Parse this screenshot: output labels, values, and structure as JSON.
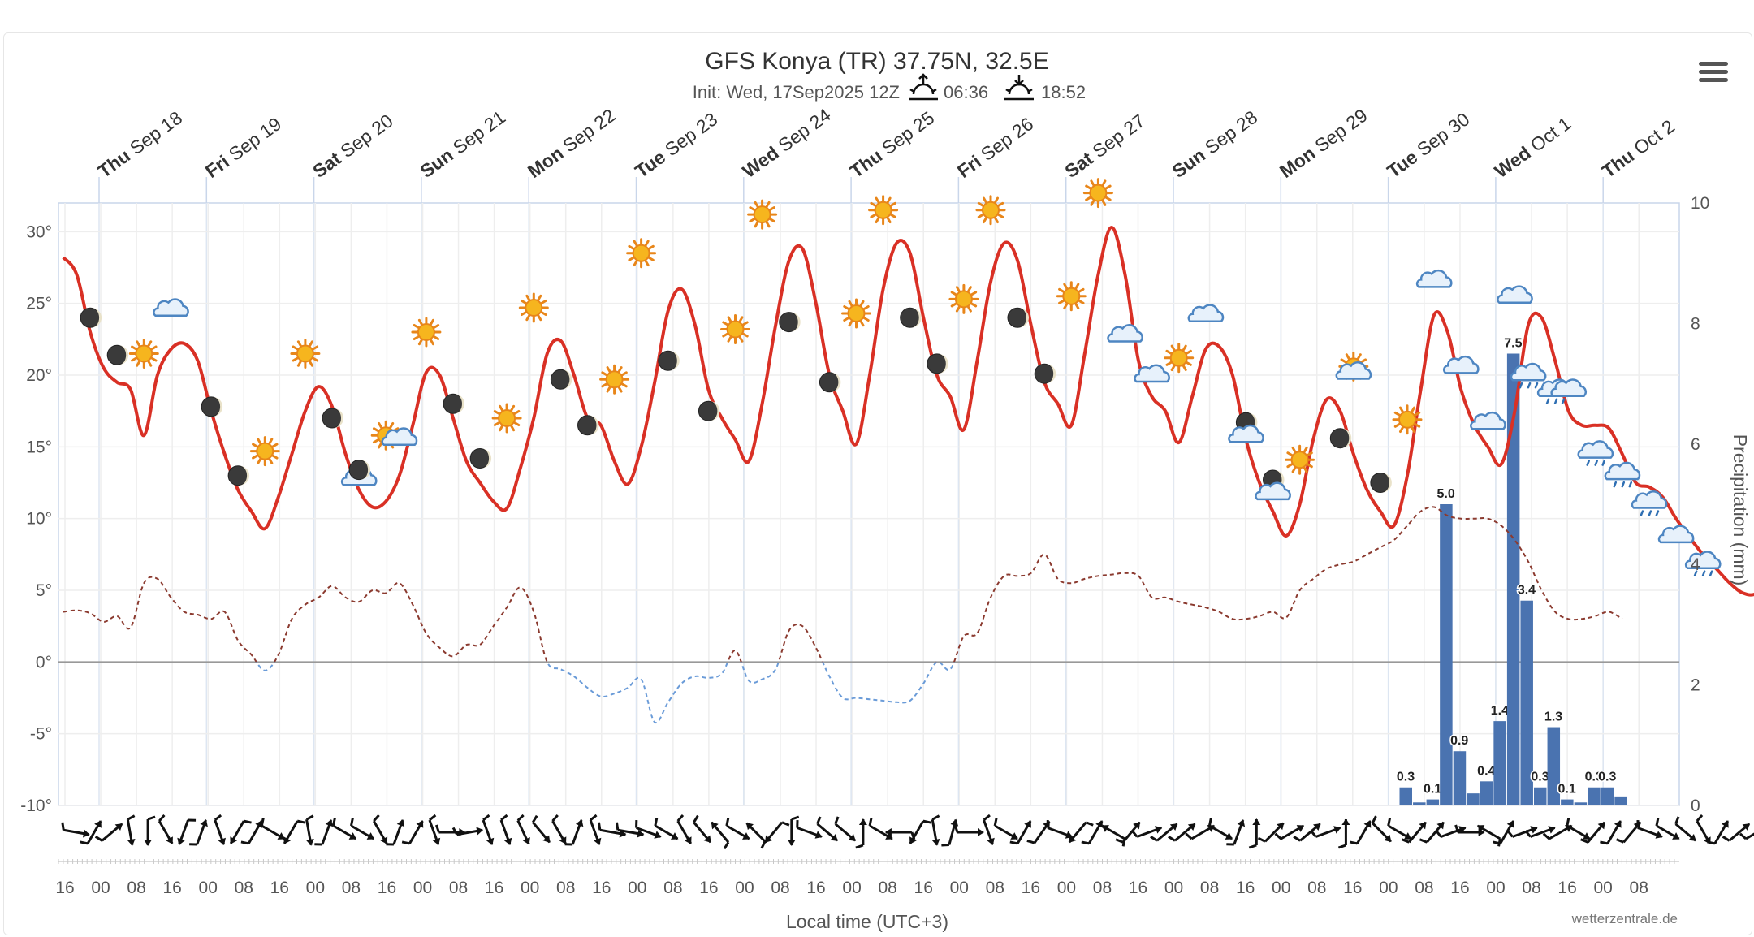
{
  "chart_data": {
    "type": "line",
    "title": "GFS Konya (TR) 37.75N, 32.5E",
    "subtitle": {
      "init": "Init: Wed, 17Sep2025 12Z",
      "sunrise": "06:36",
      "sunset": "18:52"
    },
    "days": [
      {
        "wd": "Thu",
        "date": "Sep 18"
      },
      {
        "wd": "Fri",
        "date": "Sep 19"
      },
      {
        "wd": "Sat",
        "date": "Sep 20"
      },
      {
        "wd": "Sun",
        "date": "Sep 21"
      },
      {
        "wd": "Mon",
        "date": "Sep 22"
      },
      {
        "wd": "Tue",
        "date": "Sep 23"
      },
      {
        "wd": "Wed",
        "date": "Sep 24"
      },
      {
        "wd": "Thu",
        "date": "Sep 25"
      },
      {
        "wd": "Fri",
        "date": "Sep 26"
      },
      {
        "wd": "Sat",
        "date": "Sep 27"
      },
      {
        "wd": "Sun",
        "date": "Sep 28"
      },
      {
        "wd": "Mon",
        "date": "Sep 29"
      },
      {
        "wd": "Tue",
        "date": "Sep 30"
      },
      {
        "wd": "Wed",
        "date": "Oct 1"
      },
      {
        "wd": "Thu",
        "date": "Oct 2"
      }
    ],
    "xlabel": "Local time (UTC+3)",
    "x_start": "Sep 17 15:00",
    "x_step_hours": 3,
    "x_ticks": [
      "16",
      "00",
      "08",
      "16",
      "00",
      "08",
      "16",
      "00",
      "08",
      "16",
      "00",
      "08",
      "16",
      "00",
      "08",
      "16",
      "00",
      "08",
      "16",
      "00",
      "08",
      "16",
      "00",
      "08",
      "16",
      "00",
      "08",
      "16",
      "00",
      "08",
      "16",
      "00",
      "08",
      "16",
      "00",
      "08",
      "16",
      "00",
      "08",
      "16",
      "00",
      "08",
      "16",
      "00",
      "08"
    ],
    "y_ticks": [
      "30°",
      "25°",
      "20°",
      "15°",
      "10°",
      "5°",
      "0°",
      "-5°",
      "-10°"
    ],
    "ylim": [
      -10,
      32
    ],
    "y2_ticks": [
      "10",
      "8",
      "6",
      "4",
      "2",
      "0"
    ],
    "y2label": "Precipitation (mm)",
    "y2lim": [
      0,
      10
    ],
    "series": [
      {
        "color": "#d93025",
        "values": [
          28.2,
          27.0,
          23.0,
          20.5,
          19.5,
          19.0,
          15.8,
          20.0,
          21.8,
          22.2,
          21.0,
          17.5,
          14.5,
          12.0,
          10.5,
          9.3,
          11.5,
          14.5,
          17.5,
          19.2,
          17.8,
          14.5,
          12.0,
          10.8,
          11.2,
          13.0,
          16.5,
          20.2,
          20.0,
          17.0,
          14.0,
          12.5,
          11.2,
          10.7,
          13.5,
          17.0,
          21.5,
          22.4,
          20.0,
          17.0,
          16.5,
          14.0,
          12.4,
          15.0,
          19.5,
          24.5,
          26.0,
          23.5,
          19.0,
          17.0,
          15.5,
          14.0,
          18.0,
          23.5,
          28.0,
          28.8,
          25.0,
          20.0,
          17.5,
          15.2,
          20.0,
          26.0,
          29.2,
          28.5,
          24.0,
          20.0,
          18.5,
          16.2,
          21.0,
          26.5,
          29.2,
          28.0,
          23.5,
          19.5,
          18.0,
          16.5,
          21.5,
          27.0,
          30.3,
          27.0,
          21.0,
          18.5,
          17.5,
          15.3,
          18.5,
          21.8,
          22.0,
          20.0,
          15.5,
          12.5,
          10.5,
          8.8,
          11.0,
          15.5,
          18.3,
          17.5,
          14.5,
          12.0,
          10.5,
          9.5,
          13.0,
          19.0,
          24.2,
          23.0,
          19.0,
          16.5,
          15.0,
          13.8,
          17.5,
          23.5,
          24.0,
          21.0,
          17.5,
          16.5,
          16.5,
          16.3,
          14.5,
          12.5,
          12.2,
          11.5,
          10.0,
          8.7,
          7.5,
          6.5,
          5.5,
          4.8,
          4.8,
          6.0
        ]
      },
      {
        "color": "#8b3a2f",
        "dashed": true,
        "values": [
          3.5,
          3.6,
          3.4,
          2.8,
          3.2,
          2.4,
          5.5,
          5.8,
          4.5,
          3.5,
          3.3,
          3.0,
          3.5,
          1.5,
          0.5,
          -0.6,
          0.5,
          3.0,
          4.0,
          4.5,
          5.3,
          4.5,
          4.2,
          5.0,
          4.8,
          5.5,
          4.0,
          2.0,
          1.0,
          0.4,
          1.2,
          1.2,
          2.5,
          3.8,
          5.2,
          3.5,
          0.0,
          -0.5,
          -1.0,
          -1.8,
          -2.4,
          -2.2,
          -1.8,
          -1.2,
          -4.2,
          -2.8,
          -1.5,
          -1.0,
          -1.1,
          -0.8,
          0.8,
          -1.3,
          -1.2,
          -0.5,
          2.2,
          2.5,
          1.0,
          -1.0,
          -2.5,
          -2.5,
          -2.6,
          -2.7,
          -2.8,
          -2.7,
          -1.5,
          0.0,
          -0.5,
          1.8,
          2.0,
          4.5,
          6.0,
          6.0,
          6.2,
          7.5,
          5.8,
          5.5,
          5.8,
          6.0,
          6.1,
          6.2,
          6.0,
          4.5,
          4.5,
          4.2,
          4.0,
          3.8,
          3.5,
          3.0,
          3.0,
          3.2,
          3.5,
          3.1,
          5.0,
          5.8,
          6.5,
          6.8,
          7.0,
          7.5,
          8.0,
          8.5,
          9.5,
          10.5,
          10.8,
          10.2,
          10.0,
          10.0,
          10.0,
          9.5,
          8.5,
          7.0,
          5.0,
          3.5,
          3.0,
          3.0,
          3.2,
          3.5,
          3.0
        ]
      }
    ],
    "precipitation": {
      "color": "#4a73b0",
      "bars": [
        {
          "i": 100,
          "v": 0.3,
          "label": "0.3"
        },
        {
          "i": 101,
          "v": 0.05,
          "label": ""
        },
        {
          "i": 102,
          "v": 0.1,
          "label": "0.1"
        },
        {
          "i": 103,
          "v": 5.0,
          "label": "5.0"
        },
        {
          "i": 104,
          "v": 0.9,
          "label": "0.9"
        },
        {
          "i": 105,
          "v": 0.2,
          "label": ""
        },
        {
          "i": 106,
          "v": 0.4,
          "label": "0.4"
        },
        {
          "i": 107,
          "v": 1.4,
          "label": "1.4"
        },
        {
          "i": 108,
          "v": 7.5,
          "label": "7.5"
        },
        {
          "i": 109,
          "v": 3.4,
          "label": "3.4"
        },
        {
          "i": 110,
          "v": 0.3,
          "label": "0.3"
        },
        {
          "i": 111,
          "v": 1.3,
          "label": "1.3"
        },
        {
          "i": 112,
          "v": 0.1,
          "label": "0.1"
        },
        {
          "i": 113,
          "v": 0.05,
          "label": ""
        },
        {
          "i": 114,
          "v": 0.3,
          "label": "0.3"
        },
        {
          "i": 115,
          "v": 0.3,
          "label": "0.3"
        },
        {
          "i": 116,
          "v": 0.15,
          "label": ""
        }
      ]
    },
    "weather_symbols": [
      {
        "i": 2,
        "t": 24,
        "icon": "moon"
      },
      {
        "i": 4,
        "t": 21.4,
        "icon": "moon"
      },
      {
        "i": 6,
        "t": 21.5,
        "icon": "sun"
      },
      {
        "i": 8,
        "t": 24.6,
        "icon": "cloud"
      },
      {
        "i": 11,
        "t": 17.8,
        "icon": "moon"
      },
      {
        "i": 13,
        "t": 13,
        "icon": "moon"
      },
      {
        "i": 15,
        "t": 14.7,
        "icon": "sun"
      },
      {
        "i": 18,
        "t": 21.5,
        "icon": "sun"
      },
      {
        "i": 20,
        "t": 17,
        "icon": "moon"
      },
      {
        "i": 22,
        "t": 12.8,
        "icon": "cloud"
      },
      {
        "i": 22,
        "t": 13.4,
        "icon": "moon"
      },
      {
        "i": 24,
        "t": 15.8,
        "icon": "sun"
      },
      {
        "i": 25,
        "t": 15.6,
        "icon": "cloud"
      },
      {
        "i": 27,
        "t": 23,
        "icon": "sun"
      },
      {
        "i": 29,
        "t": 18,
        "icon": "moon"
      },
      {
        "i": 31,
        "t": 14.2,
        "icon": "moon"
      },
      {
        "i": 33,
        "t": 17,
        "icon": "sun"
      },
      {
        "i": 35,
        "t": 24.7,
        "icon": "sun"
      },
      {
        "i": 37,
        "t": 19.7,
        "icon": "moon"
      },
      {
        "i": 39,
        "t": 16.5,
        "icon": "moon"
      },
      {
        "i": 41,
        "t": 19.7,
        "icon": "sun"
      },
      {
        "i": 43,
        "t": 28.5,
        "icon": "sun"
      },
      {
        "i": 45,
        "t": 21,
        "icon": "moon"
      },
      {
        "i": 48,
        "t": 17.5,
        "icon": "moon"
      },
      {
        "i": 50,
        "t": 23.2,
        "icon": "sun"
      },
      {
        "i": 52,
        "t": 31.2,
        "icon": "sun"
      },
      {
        "i": 54,
        "t": 23.7,
        "icon": "moon"
      },
      {
        "i": 57,
        "t": 19.5,
        "icon": "moon"
      },
      {
        "i": 59,
        "t": 24.3,
        "icon": "sun"
      },
      {
        "i": 61,
        "t": 31.5,
        "icon": "sun"
      },
      {
        "i": 63,
        "t": 24,
        "icon": "moon"
      },
      {
        "i": 65,
        "t": 20.8,
        "icon": "moon"
      },
      {
        "i": 67,
        "t": 25.3,
        "icon": "sun"
      },
      {
        "i": 69,
        "t": 31.5,
        "icon": "sun"
      },
      {
        "i": 71,
        "t": 24,
        "icon": "moon"
      },
      {
        "i": 73,
        "t": 20.1,
        "icon": "moon"
      },
      {
        "i": 75,
        "t": 25.5,
        "icon": "sun"
      },
      {
        "i": 77,
        "t": 32.7,
        "icon": "sun"
      },
      {
        "i": 79,
        "t": 22.8,
        "icon": "cloud"
      },
      {
        "i": 81,
        "t": 20,
        "icon": "cloud"
      },
      {
        "i": 83,
        "t": 21.2,
        "icon": "sun"
      },
      {
        "i": 85,
        "t": 24.2,
        "icon": "cloud"
      },
      {
        "i": 88,
        "t": 16.7,
        "icon": "moon"
      },
      {
        "i": 88,
        "t": 15.8,
        "icon": "cloud"
      },
      {
        "i": 90,
        "t": 12.7,
        "icon": "moon"
      },
      {
        "i": 90,
        "t": 11.8,
        "icon": "cloud"
      },
      {
        "i": 92,
        "t": 14.1,
        "icon": "sun"
      },
      {
        "i": 95,
        "t": 15.6,
        "icon": "moon"
      },
      {
        "i": 96,
        "t": 20.6,
        "icon": "sun"
      },
      {
        "i": 96,
        "t": 20.2,
        "icon": "cloud"
      },
      {
        "i": 98,
        "t": 12.5,
        "icon": "moon"
      },
      {
        "i": 100,
        "t": 16.9,
        "icon": "sun"
      },
      {
        "i": 102,
        "t": 26.6,
        "icon": "cloud"
      },
      {
        "i": 104,
        "t": 20.6,
        "icon": "cloud"
      },
      {
        "i": 106,
        "t": 16.7,
        "icon": "cloud"
      },
      {
        "i": 108,
        "t": 25.5,
        "icon": "cloud"
      },
      {
        "i": 109,
        "t": 20.1,
        "icon": "cloud-rain"
      },
      {
        "i": 111,
        "t": 19,
        "icon": "cloud-rain"
      },
      {
        "i": 112,
        "t": 19,
        "icon": "cloud"
      },
      {
        "i": 114,
        "t": 14.7,
        "icon": "cloud-rain"
      },
      {
        "i": 116,
        "t": 13.2,
        "icon": "cloud-rain"
      },
      {
        "i": 118,
        "t": 11.2,
        "icon": "cloud-rain"
      },
      {
        "i": 120,
        "t": 8.8,
        "icon": "cloud"
      },
      {
        "i": 122,
        "t": 7,
        "icon": "cloud-rain"
      }
    ],
    "wind_directions_deg": [
      280,
      210,
      230,
      350,
      0,
      330,
      20,
      200,
      340,
      30,
      210,
      300,
      30,
      350,
      200,
      300,
      300,
      330,
      200,
      210,
      340,
      270,
      260,
      340,
      340,
      335,
      320,
      330,
      200,
      340,
      280,
      280,
      290,
      300,
      330,
      320,
      140,
      300,
      135,
      40,
      0,
      290,
      310,
      310,
      180,
      300,
      90,
      30,
      350,
      195,
      270,
      340,
      300,
      210,
      215,
      290,
      40,
      210,
      120,
      220,
      250,
      230,
      230,
      240,
      300,
      200,
      180,
      225,
      240,
      230,
      250,
      180,
      210,
      315,
      300,
      220,
      220,
      250,
      270,
      120,
      210,
      250,
      250,
      240,
      300,
      220,
      210,
      220,
      290,
      300,
      310,
      330,
      210,
      230,
      240,
      310
    ],
    "credit": "wetterzentrale.de"
  }
}
